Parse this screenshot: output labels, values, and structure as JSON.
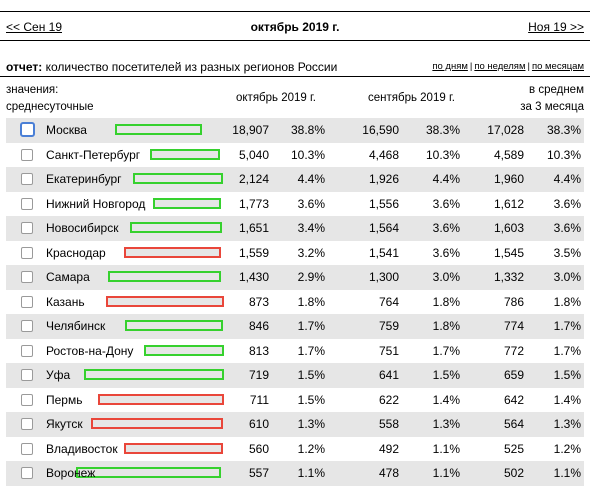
{
  "nav": {
    "prev": "<< Сен 19",
    "title": "октябрь 2019 г.",
    "next": "Ноя 19 >>"
  },
  "report": {
    "label": "отчет:",
    "text": " количество посетителей из разных регионов России",
    "modes": [
      "по дням",
      "по неделям",
      "по месяцам"
    ]
  },
  "header": {
    "values_line1": "значения:",
    "values_line2": "среднесуточные",
    "col_oct": "октябрь 2019 г.",
    "col_sep": "сентябрь 2019 г.",
    "col_avg_line1": "в среднем",
    "col_avg_line2": "за 3 месяца"
  },
  "colors": {
    "up": "#36d12e",
    "down": "#e9463a",
    "shade": "#e6e6e6"
  },
  "rows": [
    {
      "city": "Москва",
      "oct": "18,907",
      "oct_pct": "38.8%",
      "sep": "16,590",
      "sep_pct": "38.3%",
      "avg": "17,028",
      "avg_pct": "38.3%",
      "trend": "up"
    },
    {
      "city": "Санкт-Петербург",
      "oct": "5,040",
      "oct_pct": "10.3%",
      "sep": "4,468",
      "sep_pct": "10.3%",
      "avg": "4,589",
      "avg_pct": "10.3%",
      "trend": "up"
    },
    {
      "city": "Екатеринбург",
      "oct": "2,124",
      "oct_pct": "4.4%",
      "sep": "1,926",
      "sep_pct": "4.4%",
      "avg": "1,960",
      "avg_pct": "4.4%",
      "trend": "up"
    },
    {
      "city": "Нижний Новгород",
      "oct": "1,773",
      "oct_pct": "3.6%",
      "sep": "1,556",
      "sep_pct": "3.6%",
      "avg": "1,612",
      "avg_pct": "3.6%",
      "trend": "up"
    },
    {
      "city": "Новосибирск",
      "oct": "1,651",
      "oct_pct": "3.4%",
      "sep": "1,564",
      "sep_pct": "3.6%",
      "avg": "1,603",
      "avg_pct": "3.6%",
      "trend": "up"
    },
    {
      "city": "Краснодар",
      "oct": "1,559",
      "oct_pct": "3.2%",
      "sep": "1,541",
      "sep_pct": "3.6%",
      "avg": "1,545",
      "avg_pct": "3.5%",
      "trend": "down"
    },
    {
      "city": "Самара",
      "oct": "1,430",
      "oct_pct": "2.9%",
      "sep": "1,300",
      "sep_pct": "3.0%",
      "avg": "1,332",
      "avg_pct": "3.0%",
      "trend": "up"
    },
    {
      "city": "Казань",
      "oct": "873",
      "oct_pct": "1.8%",
      "sep": "764",
      "sep_pct": "1.8%",
      "avg": "786",
      "avg_pct": "1.8%",
      "trend": "down"
    },
    {
      "city": "Челябинск",
      "oct": "846",
      "oct_pct": "1.7%",
      "sep": "759",
      "sep_pct": "1.8%",
      "avg": "774",
      "avg_pct": "1.7%",
      "trend": "up"
    },
    {
      "city": "Ростов-на-Дону",
      "oct": "813",
      "oct_pct": "1.7%",
      "sep": "751",
      "sep_pct": "1.7%",
      "avg": "772",
      "avg_pct": "1.7%",
      "trend": "up"
    },
    {
      "city": "Уфа",
      "oct": "719",
      "oct_pct": "1.5%",
      "sep": "641",
      "sep_pct": "1.5%",
      "avg": "659",
      "avg_pct": "1.5%",
      "trend": "up"
    },
    {
      "city": "Пермь",
      "oct": "711",
      "oct_pct": "1.5%",
      "sep": "622",
      "sep_pct": "1.4%",
      "avg": "642",
      "avg_pct": "1.4%",
      "trend": "down"
    },
    {
      "city": "Якутск",
      "oct": "610",
      "oct_pct": "1.3%",
      "sep": "558",
      "sep_pct": "1.3%",
      "avg": "564",
      "avg_pct": "1.3%",
      "trend": "down"
    },
    {
      "city": "Владивосток",
      "oct": "560",
      "oct_pct": "1.2%",
      "sep": "492",
      "sep_pct": "1.1%",
      "avg": "525",
      "avg_pct": "1.2%",
      "trend": "down"
    },
    {
      "city": "Воронеж",
      "oct": "557",
      "oct_pct": "1.1%",
      "sep": "478",
      "sep_pct": "1.1%",
      "avg": "502",
      "avg_pct": "1.1%",
      "trend": "up"
    }
  ]
}
